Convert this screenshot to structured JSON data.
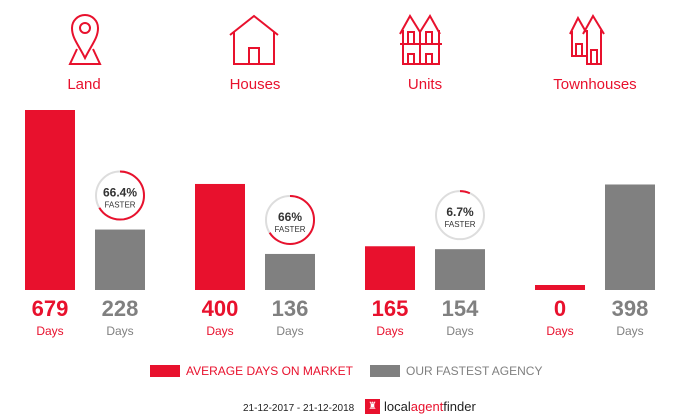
{
  "colors": {
    "average": "#e8112d",
    "agency": "#808080"
  },
  "chart_data": {
    "type": "bar",
    "categories": [
      "Land",
      "Houses",
      "Units",
      "Townhouses"
    ],
    "series": [
      {
        "name": "AVERAGE DAYS ON MARKET",
        "values": [
          679,
          400,
          165,
          0
        ]
      },
      {
        "name": "OUR FASTEST AGENCY",
        "values": [
          228,
          136,
          154,
          398
        ]
      }
    ],
    "unit_label": "Days",
    "faster": [
      {
        "pct": 66.4,
        "label": "66.4%",
        "text": "FASTER"
      },
      {
        "pct": 66,
        "label": "66%",
        "text": "FASTER"
      },
      {
        "pct": 6.7,
        "label": "6.7%",
        "text": "FASTER"
      },
      null
    ]
  },
  "icons": [
    "map-pin-icon",
    "house-icon",
    "units-icon",
    "townhouses-icon"
  ],
  "footer": {
    "date_range": "21-12-2017 - 21-12-2018",
    "brand_local": "local",
    "brand_agent": "agent",
    "brand_finder": "finder"
  }
}
